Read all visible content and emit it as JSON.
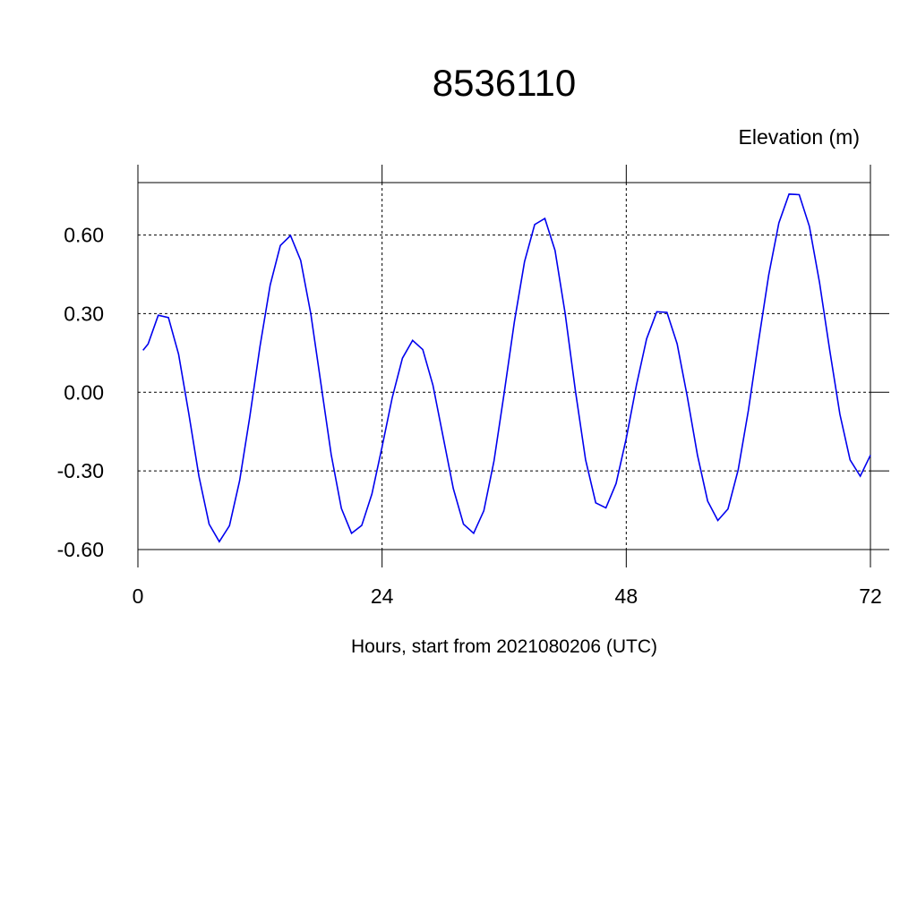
{
  "chart_data": {
    "type": "line",
    "title": "8536110",
    "ylabel": "Elevation (m)",
    "xlabel": "Hours, start from 2021080206 (UTC)",
    "xlim": [
      0,
      72
    ],
    "ylim": [
      -0.6,
      0.8
    ],
    "xticks": [
      0,
      24,
      48,
      72
    ],
    "yticks": [
      {
        "value": -0.6,
        "label": "-0.60"
      },
      {
        "value": -0.3,
        "label": "-0.30"
      },
      {
        "value": 0,
        "label": "0.00"
      },
      {
        "value": 0.3,
        "label": "0.30"
      },
      {
        "value": 0.6,
        "label": "0.60"
      }
    ],
    "grid": true,
    "x": [
      0.5,
      1,
      2,
      3,
      4,
      5,
      6,
      7,
      8,
      9,
      10,
      11,
      12,
      13,
      14,
      15,
      16,
      17,
      18,
      19,
      20,
      21,
      22,
      23,
      24,
      25,
      26,
      27,
      28,
      29,
      30,
      31,
      32,
      33,
      34,
      35,
      36,
      37,
      38,
      39,
      40,
      41,
      42,
      43,
      44,
      45,
      46,
      47,
      48,
      49,
      50,
      51,
      52,
      53,
      54,
      55,
      56,
      57,
      58,
      59,
      60,
      61,
      62,
      63,
      64,
      65,
      66,
      67,
      68,
      69,
      70,
      71,
      72
    ],
    "series": [
      {
        "color": "#0000ee",
        "values": [
          0.16,
          0.184,
          0.294,
          0.285,
          0.145,
          -0.081,
          -0.321,
          -0.503,
          -0.57,
          -0.509,
          -0.337,
          -0.093,
          0.175,
          0.409,
          0.56,
          0.598,
          0.503,
          0.298,
          0.03,
          -0.238,
          -0.443,
          -0.538,
          -0.508,
          -0.388,
          -0.208,
          -0.02,
          0.13,
          0.198,
          0.163,
          0.027,
          -0.17,
          -0.367,
          -0.503,
          -0.538,
          -0.452,
          -0.262,
          -0.003,
          0.268,
          0.498,
          0.64,
          0.663,
          0.541,
          0.299,
          0.006,
          -0.257,
          -0.422,
          -0.441,
          -0.348,
          -0.176,
          0.027,
          0.204,
          0.307,
          0.305,
          0.185,
          -0.017,
          -0.24,
          -0.415,
          -0.489,
          -0.445,
          -0.296,
          -0.07,
          0.194,
          0.447,
          0.646,
          0.756,
          0.754,
          0.633,
          0.418,
          0.16,
          -0.084,
          -0.258,
          -0.32,
          -0.24
        ]
      }
    ]
  }
}
